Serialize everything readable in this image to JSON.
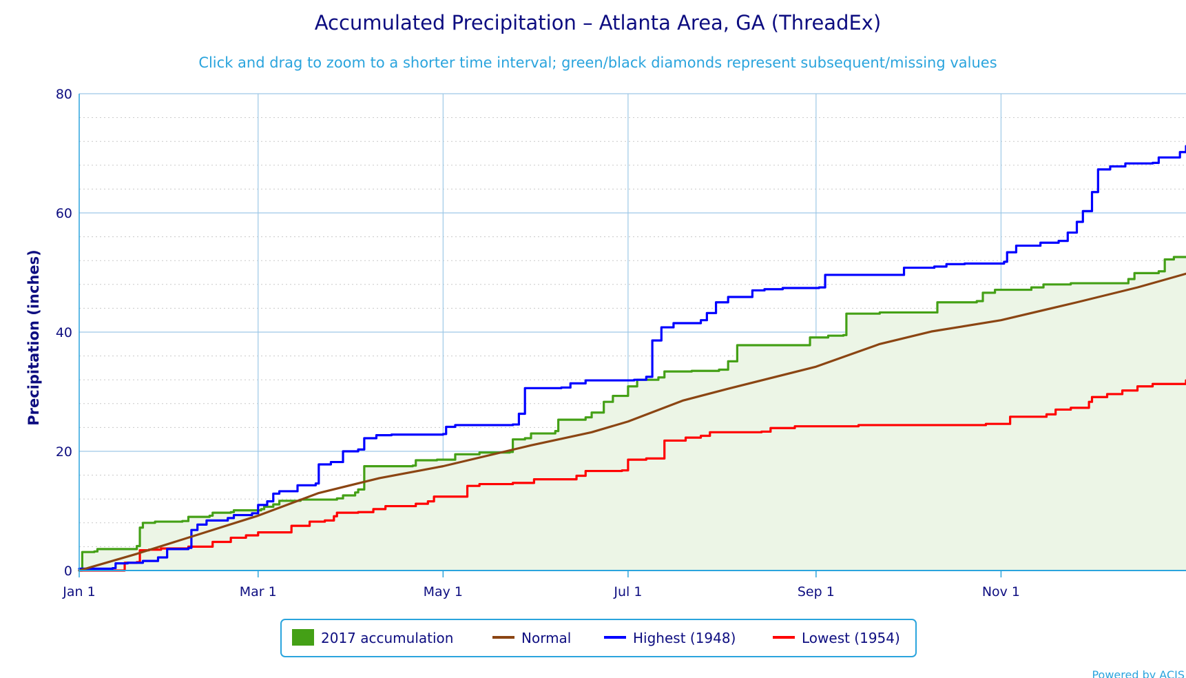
{
  "chart_data": {
    "type": "area",
    "title": "Accumulated Precipitation – Atlanta Area, GA (ThreadEx)",
    "subtitle": "Click and drag to zoom to a shorter time interval; green/black diamonds represent subsequent/missing values",
    "ylabel": "Precipitation (inches)",
    "xlabel": "",
    "ylim": [
      0,
      80
    ],
    "y_ticks": [
      0,
      20,
      40,
      60,
      80
    ],
    "xlim": [
      1,
      366
    ],
    "x_units": "day of year",
    "x_ticks": [
      {
        "day": 1,
        "label": "Jan 1"
      },
      {
        "day": 60,
        "label": "Mar 1"
      },
      {
        "day": 121,
        "label": "May 1"
      },
      {
        "day": 182,
        "label": "Jul 1"
      },
      {
        "day": 244,
        "label": "Sep 1"
      },
      {
        "day": 305,
        "label": "Nov 1"
      }
    ],
    "grid": true,
    "legend_position": "bottom-center",
    "credit": "Powered by ACIS",
    "series": [
      {
        "name": "2017 accumulation",
        "style": "area-step",
        "color": "#44a016",
        "fill": "#ecf5e6",
        "points": [
          [
            1,
            0
          ],
          [
            2,
            3.1
          ],
          [
            6,
            3.2
          ],
          [
            7,
            3.6
          ],
          [
            19,
            3.6
          ],
          [
            20,
            4.1
          ],
          [
            21,
            7.2
          ],
          [
            22,
            8.0
          ],
          [
            26,
            8.2
          ],
          [
            35,
            8.3
          ],
          [
            37,
            9.0
          ],
          [
            44,
            9.2
          ],
          [
            45,
            9.7
          ],
          [
            51,
            9.8
          ],
          [
            52,
            10.1
          ],
          [
            61,
            10.3
          ],
          [
            62,
            10.7
          ],
          [
            65,
            11.1
          ],
          [
            67,
            11.7
          ],
          [
            74,
            11.9
          ],
          [
            86,
            12.1
          ],
          [
            88,
            12.6
          ],
          [
            92,
            13.1
          ],
          [
            93,
            13.6
          ],
          [
            95,
            17.5
          ],
          [
            111,
            17.6
          ],
          [
            112,
            18.5
          ],
          [
            119,
            18.6
          ],
          [
            125,
            19.5
          ],
          [
            133,
            19.8
          ],
          [
            143,
            19.9
          ],
          [
            144,
            22.0
          ],
          [
            148,
            22.2
          ],
          [
            150,
            23.0
          ],
          [
            158,
            23.4
          ],
          [
            159,
            25.3
          ],
          [
            168,
            25.7
          ],
          [
            170,
            26.5
          ],
          [
            174,
            28.3
          ],
          [
            177,
            29.3
          ],
          [
            182,
            30.9
          ],
          [
            185,
            32.0
          ],
          [
            192,
            32.4
          ],
          [
            194,
            33.4
          ],
          [
            203,
            33.5
          ],
          [
            212,
            33.7
          ],
          [
            215,
            35.1
          ],
          [
            218,
            37.8
          ],
          [
            240,
            37.8
          ],
          [
            242,
            39.1
          ],
          [
            248,
            39.4
          ],
          [
            253,
            39.5
          ],
          [
            254,
            43.1
          ],
          [
            265,
            43.3
          ],
          [
            282,
            43.3
          ],
          [
            284,
            45.0
          ],
          [
            297,
            45.2
          ],
          [
            299,
            46.6
          ],
          [
            303,
            47.1
          ],
          [
            315,
            47.5
          ],
          [
            319,
            48.0
          ],
          [
            328,
            48.2
          ],
          [
            347,
            48.9
          ],
          [
            349,
            49.9
          ],
          [
            357,
            50.2
          ],
          [
            359,
            52.2
          ],
          [
            362,
            52.6
          ],
          [
            366,
            52.6
          ]
        ]
      },
      {
        "name": "Normal",
        "style": "line",
        "color": "#8b4513",
        "points": [
          [
            1,
            0
          ],
          [
            20,
            2.8
          ],
          [
            40,
            6.0
          ],
          [
            60,
            9.2
          ],
          [
            80,
            13.0
          ],
          [
            100,
            15.5
          ],
          [
            121,
            17.5
          ],
          [
            150,
            21.0
          ],
          [
            170,
            23.2
          ],
          [
            182,
            25.0
          ],
          [
            200,
            28.5
          ],
          [
            215,
            30.5
          ],
          [
            244,
            34.2
          ],
          [
            265,
            38.0
          ],
          [
            282,
            40.1
          ],
          [
            305,
            42.0
          ],
          [
            330,
            45.0
          ],
          [
            350,
            47.5
          ],
          [
            366,
            49.8
          ]
        ]
      },
      {
        "name": "Highest (1948)",
        "style": "step",
        "color": "#0000ff",
        "points": [
          [
            1,
            0.3
          ],
          [
            12,
            0.4
          ],
          [
            13,
            1.2
          ],
          [
            17,
            1.3
          ],
          [
            22,
            1.6
          ],
          [
            27,
            2.2
          ],
          [
            30,
            3.6
          ],
          [
            37,
            3.8
          ],
          [
            38,
            6.8
          ],
          [
            40,
            7.7
          ],
          [
            43,
            8.4
          ],
          [
            50,
            8.8
          ],
          [
            52,
            9.3
          ],
          [
            58,
            9.6
          ],
          [
            60,
            11.0
          ],
          [
            63,
            11.6
          ],
          [
            65,
            12.9
          ],
          [
            67,
            13.3
          ],
          [
            73,
            14.3
          ],
          [
            79,
            14.6
          ],
          [
            80,
            17.8
          ],
          [
            84,
            18.2
          ],
          [
            88,
            20.0
          ],
          [
            93,
            20.3
          ],
          [
            95,
            22.2
          ],
          [
            99,
            22.7
          ],
          [
            104,
            22.8
          ],
          [
            121,
            22.9
          ],
          [
            122,
            24.1
          ],
          [
            125,
            24.4
          ],
          [
            144,
            24.5
          ],
          [
            146,
            26.3
          ],
          [
            148,
            30.6
          ],
          [
            160,
            30.7
          ],
          [
            163,
            31.4
          ],
          [
            168,
            31.9
          ],
          [
            184,
            32.0
          ],
          [
            188,
            32.5
          ],
          [
            190,
            38.6
          ],
          [
            193,
            40.8
          ],
          [
            197,
            41.5
          ],
          [
            206,
            42.0
          ],
          [
            208,
            43.2
          ],
          [
            211,
            45.0
          ],
          [
            215,
            45.9
          ],
          [
            223,
            47.0
          ],
          [
            227,
            47.2
          ],
          [
            233,
            47.4
          ],
          [
            245,
            47.5
          ],
          [
            247,
            49.6
          ],
          [
            273,
            50.8
          ],
          [
            283,
            51.0
          ],
          [
            287,
            51.4
          ],
          [
            293,
            51.5
          ],
          [
            306,
            51.8
          ],
          [
            307,
            53.4
          ],
          [
            310,
            54.5
          ],
          [
            318,
            55.0
          ],
          [
            324,
            55.3
          ],
          [
            327,
            56.7
          ],
          [
            330,
            58.5
          ],
          [
            332,
            60.3
          ],
          [
            335,
            63.5
          ],
          [
            337,
            67.3
          ],
          [
            341,
            67.8
          ],
          [
            346,
            68.3
          ],
          [
            355,
            68.4
          ],
          [
            357,
            69.3
          ],
          [
            364,
            70.2
          ],
          [
            366,
            71.2
          ]
        ]
      },
      {
        "name": "Lowest (1954)",
        "style": "step",
        "color": "#ff0000",
        "points": [
          [
            1,
            0
          ],
          [
            15,
            0
          ],
          [
            16,
            1.3
          ],
          [
            20,
            1.4
          ],
          [
            21,
            3.4
          ],
          [
            24,
            3.5
          ],
          [
            28,
            3.7
          ],
          [
            37,
            4.0
          ],
          [
            45,
            4.8
          ],
          [
            51,
            5.5
          ],
          [
            56,
            5.9
          ],
          [
            60,
            6.4
          ],
          [
            71,
            7.5
          ],
          [
            77,
            8.2
          ],
          [
            82,
            8.4
          ],
          [
            85,
            9.1
          ],
          [
            86,
            9.7
          ],
          [
            93,
            9.8
          ],
          [
            98,
            10.3
          ],
          [
            102,
            10.8
          ],
          [
            112,
            11.2
          ],
          [
            116,
            11.6
          ],
          [
            118,
            12.4
          ],
          [
            129,
            14.2
          ],
          [
            133,
            14.5
          ],
          [
            144,
            14.7
          ],
          [
            151,
            15.3
          ],
          [
            165,
            15.9
          ],
          [
            168,
            16.7
          ],
          [
            180,
            16.8
          ],
          [
            182,
            18.6
          ],
          [
            188,
            18.8
          ],
          [
            194,
            21.8
          ],
          [
            201,
            22.3
          ],
          [
            206,
            22.6
          ],
          [
            209,
            23.2
          ],
          [
            226,
            23.3
          ],
          [
            229,
            23.9
          ],
          [
            237,
            24.2
          ],
          [
            258,
            24.4
          ],
          [
            300,
            24.6
          ],
          [
            308,
            25.8
          ],
          [
            320,
            26.2
          ],
          [
            323,
            27.0
          ],
          [
            328,
            27.3
          ],
          [
            334,
            28.3
          ],
          [
            335,
            29.1
          ],
          [
            340,
            29.6
          ],
          [
            345,
            30.2
          ],
          [
            350,
            30.9
          ],
          [
            355,
            31.3
          ],
          [
            366,
            31.9
          ]
        ]
      }
    ]
  }
}
